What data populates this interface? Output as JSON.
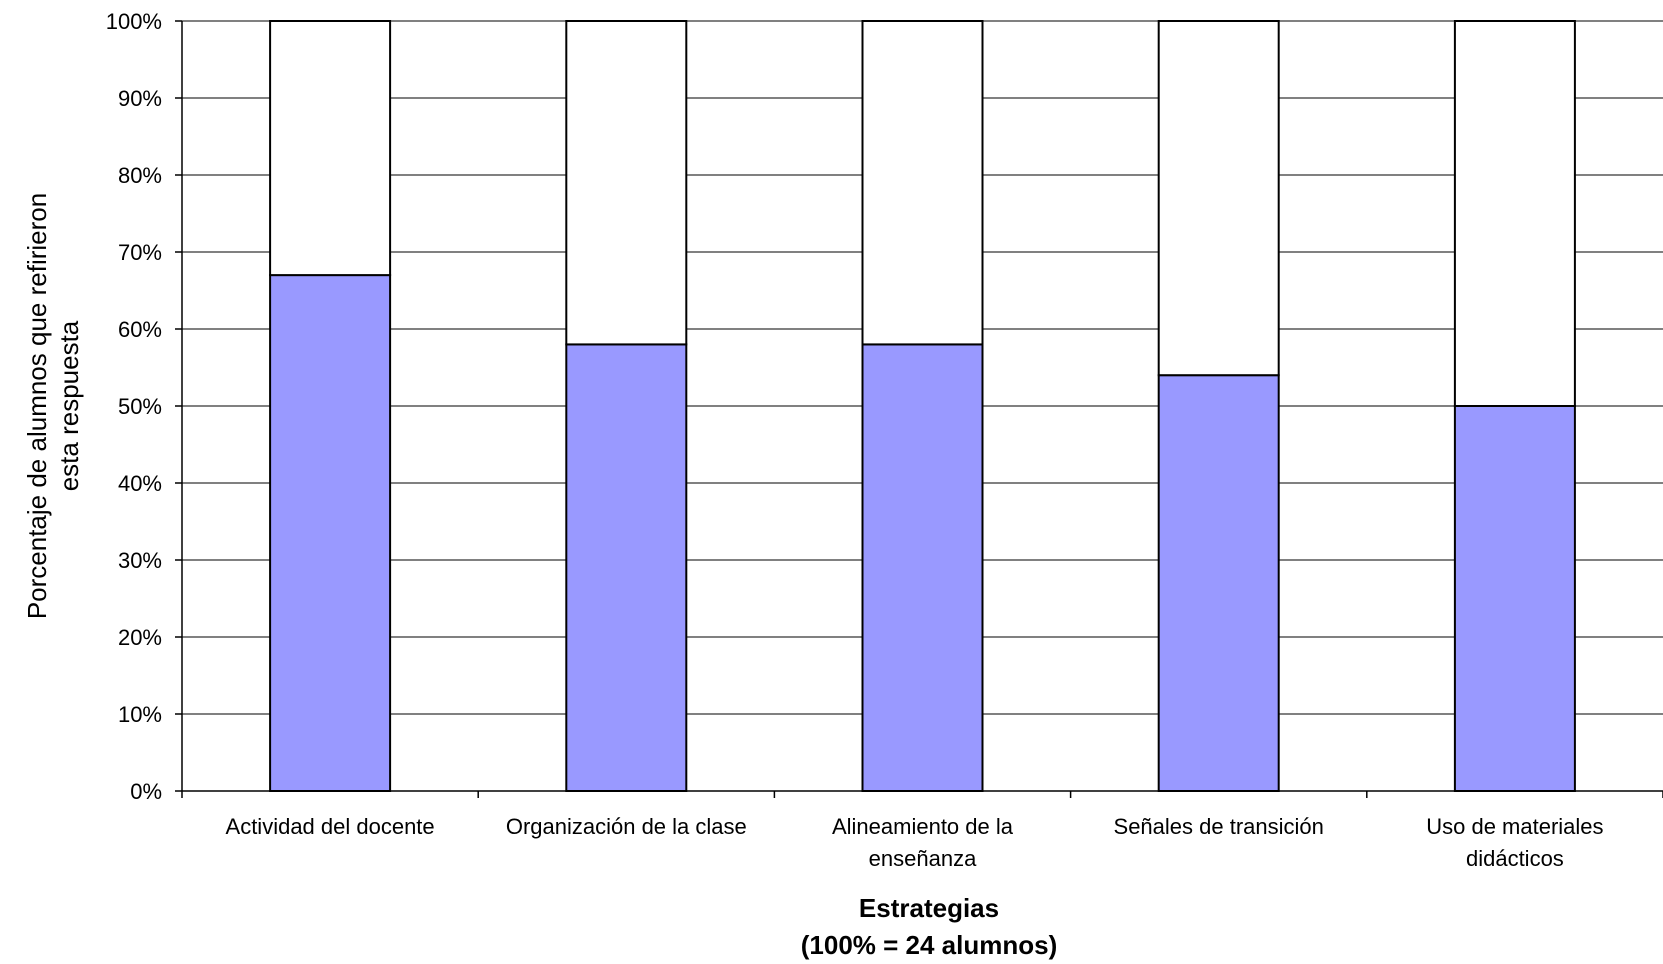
{
  "chart_data": {
    "type": "bar",
    "stacked": true,
    "categories": [
      [
        "Actividad del  docente"
      ],
      [
        "Organización de la clase"
      ],
      [
        "Alineamiento de la",
        "enseñanza"
      ],
      [
        "Señales de transición"
      ],
      [
        "Uso de materiales",
        "didácticos"
      ]
    ],
    "series": [
      {
        "values": [
          67,
          58,
          58,
          54,
          50
        ],
        "color": "#9999ff"
      },
      {
        "values": [
          33,
          42,
          42,
          46,
          50
        ],
        "color": "#ffffff"
      }
    ],
    "ylim": [
      0,
      100
    ],
    "yticks": [
      "0%",
      "10%",
      "20%",
      "30%",
      "40%",
      "50%",
      "60%",
      "70%",
      "80%",
      "90%",
      "100%"
    ],
    "ylabel_lines": [
      "Porcentaje de alumnos que refirieron",
      "esta respuesta"
    ],
    "xlabel_lines": [
      "Estrategias",
      "(100% = 24 alumnos)"
    ],
    "grid": true,
    "legend": "none"
  }
}
